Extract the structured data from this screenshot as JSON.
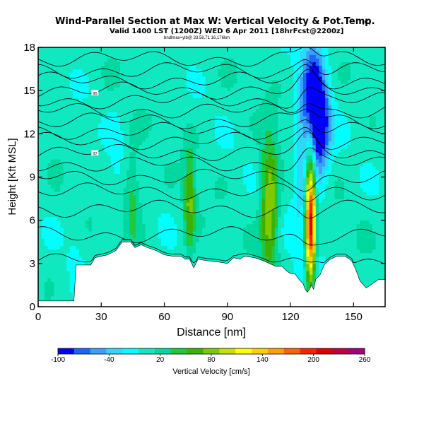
{
  "chart_data": {
    "type": "heatmap",
    "title": "Wind-Parallel Section at Max W: Vertical Velocity & Pot.Temp.",
    "title_mark": "(C)",
    "subtitle": "Valid 1400 LST (1200Z) WED 6 Apr 2011 [18hrFcst@2200z]",
    "subtitle2": "bndlmax=ylb@ 33.58,71 16,176km",
    "xlabel": "Distance [nm]",
    "ylabel": "Height [Kft MSL]",
    "xlim": [
      0,
      165
    ],
    "ylim": [
      0,
      18
    ],
    "xticks": [
      0,
      30,
      60,
      90,
      120,
      150
    ],
    "yticks": [
      0,
      3,
      6,
      9,
      12,
      15,
      18
    ],
    "colorbar": {
      "label": "Vertical Velocity [cm/s]",
      "ticks": [
        "-100",
        "-40",
        "20",
        "80",
        "140",
        "200",
        "260"
      ],
      "range": [
        -100,
        260
      ],
      "colors": [
        "#0000ff",
        "#1e64ff",
        "#3aa0ff",
        "#30d8f8",
        "#00ffff",
        "#10e8c0",
        "#00d8a0",
        "#20c840",
        "#40b000",
        "#80c800",
        "#c8e000",
        "#ffff00",
        "#ffd000",
        "#ffa000",
        "#ff6000",
        "#ff2000",
        "#e00000",
        "#c00040",
        "#a0007c"
      ]
    },
    "terrain_kft": [
      [
        0,
        0.4
      ],
      [
        17,
        0.4
      ],
      [
        18,
        2.9
      ],
      [
        25,
        2.9
      ],
      [
        27,
        3.4
      ],
      [
        30,
        3.5
      ],
      [
        33,
        3.6
      ],
      [
        37,
        3.9
      ],
      [
        40,
        4.5
      ],
      [
        44,
        4.5
      ],
      [
        46,
        4.1
      ],
      [
        49,
        4.3
      ],
      [
        52,
        4.1
      ],
      [
        56,
        3.9
      ],
      [
        60,
        3.6
      ],
      [
        64,
        3.5
      ],
      [
        68,
        3.5
      ],
      [
        70,
        3.3
      ],
      [
        72,
        3.3
      ],
      [
        74,
        2.7
      ],
      [
        76,
        3.3
      ],
      [
        80,
        3.2
      ],
      [
        86,
        3.1
      ],
      [
        90,
        3.0
      ],
      [
        93,
        3.4
      ],
      [
        96,
        3.3
      ],
      [
        98,
        3.5
      ],
      [
        103,
        3.4
      ],
      [
        107,
        3.2
      ],
      [
        110,
        3.0
      ],
      [
        113,
        2.8
      ],
      [
        116,
        2.8
      ],
      [
        118,
        2.5
      ],
      [
        120,
        2.3
      ],
      [
        122,
        2.3
      ],
      [
        124,
        1.9
      ],
      [
        126,
        1.6
      ],
      [
        127,
        1.2
      ],
      [
        128,
        1.0
      ],
      [
        129,
        1.2
      ],
      [
        130,
        1.5
      ],
      [
        131,
        1.2
      ],
      [
        132,
        1.9
      ],
      [
        134,
        2.2
      ],
      [
        136,
        2.9
      ],
      [
        139,
        3.3
      ],
      [
        142,
        3.5
      ],
      [
        146,
        3.5
      ],
      [
        149,
        3.2
      ],
      [
        151,
        2.6
      ],
      [
        153,
        1.8
      ],
      [
        156,
        1.3
      ],
      [
        159,
        1.6
      ],
      [
        162,
        1.9
      ],
      [
        165,
        1.9
      ]
    ],
    "features": [
      {
        "x": 131,
        "z": 14.3,
        "rx": 5,
        "rz": 4.2,
        "value": -95
      },
      {
        "x": 128,
        "z": 9.0,
        "rx": 7,
        "rz": 9.2,
        "value": -30
      },
      {
        "x": 135,
        "z": 12.5,
        "rx": 4.5,
        "rz": 3.0,
        "value": -75
      },
      {
        "x": 129.5,
        "z": 6.0,
        "rx": 2.4,
        "rz": 4.6,
        "value": 230
      },
      {
        "x": 110,
        "z": 7.0,
        "rx": 4,
        "rz": 4.5,
        "value": 90
      },
      {
        "x": 72,
        "z": 7.3,
        "rx": 2.5,
        "rz": 3.4,
        "value": 70
      },
      {
        "x": 45,
        "z": 7.5,
        "rx": 4,
        "rz": 3.0,
        "value": 40
      },
      {
        "x": 37,
        "z": 10.5,
        "rx": 3,
        "rz": 3.5,
        "value": -15
      },
      {
        "x": 18,
        "z": 6.0,
        "rx": 4,
        "rz": 4.5,
        "value": -12
      },
      {
        "x": 125,
        "z": 9.5,
        "rx": 2.5,
        "rz": 4.0,
        "value": -20
      }
    ],
    "isentropes": [
      {
        "z0": 3.2,
        "label": ""
      },
      {
        "z0": 5.0,
        "label": ""
      },
      {
        "z0": 6.8,
        "label": ""
      },
      {
        "z0": 8.0,
        "label": ""
      },
      {
        "z0": 9.0,
        "label": ""
      },
      {
        "z0": 9.9,
        "label": ""
      },
      {
        "z0": 10.7,
        "label": "32"
      },
      {
        "z0": 11.5,
        "label": ""
      },
      {
        "z0": 12.2,
        "label": ""
      },
      {
        "z0": 12.9,
        "label": ""
      },
      {
        "z0": 13.6,
        "label": ""
      },
      {
        "z0": 14.3,
        "label": ""
      },
      {
        "z0": 15.0,
        "label": "35"
      },
      {
        "z0": 15.7,
        "label": ""
      },
      {
        "z0": 16.4,
        "label": ""
      },
      {
        "z0": 17.2,
        "label": ""
      }
    ],
    "grid": false
  }
}
